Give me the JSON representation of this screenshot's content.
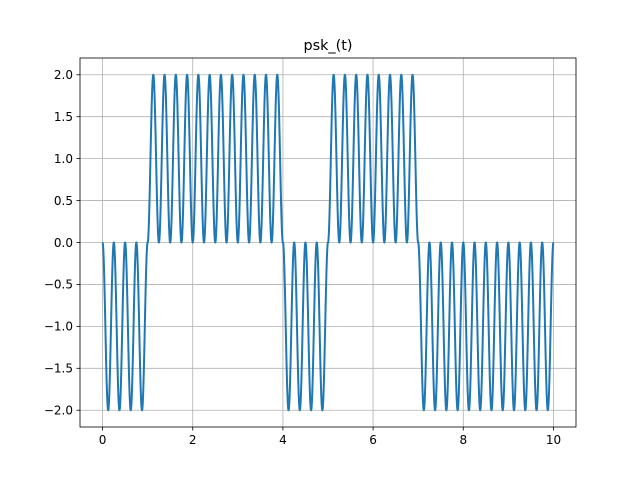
{
  "chart_data": {
    "type": "line",
    "title": "psk_(t)",
    "xlabel": "",
    "ylabel": "",
    "xlim": [
      -0.5,
      10.5
    ],
    "ylim": [
      -2.2,
      2.2
    ],
    "xticks": [
      0,
      2,
      4,
      6,
      8,
      10
    ],
    "xtick_labels": [
      "0",
      "2",
      "4",
      "6",
      "8",
      "10"
    ],
    "yticks": [
      2.0,
      1.5,
      1.0,
      0.5,
      0.0,
      -0.5,
      -1.0,
      -1.5,
      -2.0
    ],
    "ytick_labels": [
      "2.0",
      "1.5",
      "1.0",
      "0.5",
      "0.0",
      "−0.5",
      "−1.0",
      "−1.5",
      "−2.0"
    ],
    "grid": true,
    "legend": false,
    "color": "#1f77b4",
    "series": [
      {
        "bit_duration": 1,
        "bits": [
          0,
          1,
          1,
          1,
          0,
          1,
          1,
          0,
          0,
          0
        ],
        "symbol_values": [
          -1,
          1,
          1,
          1,
          -1,
          1,
          1,
          -1,
          -1,
          -1
        ],
        "cycles_per_bit": 4,
        "formula": "y = A_bit * (1 - cos(2*pi*4*t))",
        "x_range": [
          0,
          10
        ]
      }
    ]
  }
}
